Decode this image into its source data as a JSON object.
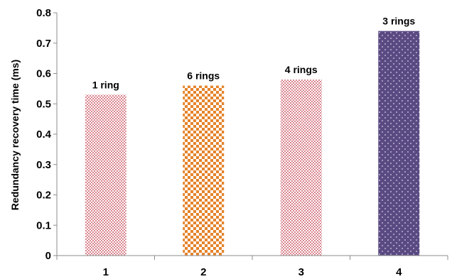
{
  "chart_data": {
    "type": "bar",
    "title": "",
    "xlabel": "",
    "ylabel": "Redundancy recovery time (ms)",
    "categories": [
      "1",
      "2",
      "3",
      "4"
    ],
    "values": [
      0.53,
      0.56,
      0.58,
      0.74
    ],
    "bar_labels": [
      "1 ring",
      "6 rings",
      "4 rings",
      "3 rings"
    ],
    "ylim": [
      0,
      0.8
    ],
    "yticks": [
      "0",
      "0.1",
      "0.2",
      "0.3",
      "0.4",
      "0.5",
      "0.6",
      "0.7",
      "0.8"
    ],
    "grid": false,
    "legend": "none",
    "bar_colors": [
      "#d9848e",
      "#e5832a",
      "#d9848e",
      "#5a4a82"
    ],
    "bar_fill_styles": [
      "fine-check",
      "checker",
      "fine-check",
      "dotted"
    ]
  }
}
